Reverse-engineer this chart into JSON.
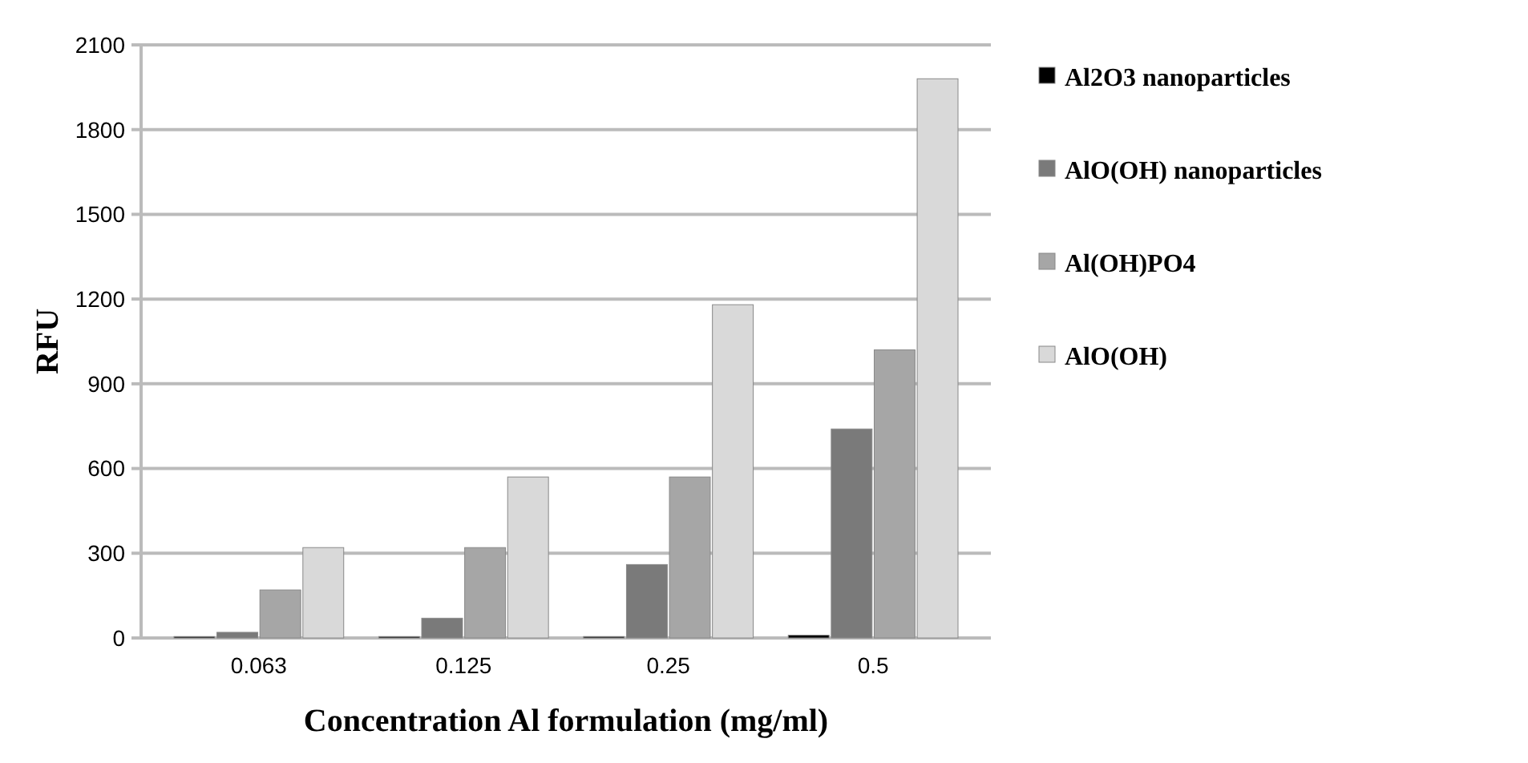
{
  "chart_data": {
    "type": "bar",
    "xlabel": "Concentration Al formulation (mg/ml)",
    "ylabel": "RFU",
    "categories": [
      "0.063",
      "0.125",
      "0.25",
      "0.5"
    ],
    "series": [
      {
        "name": "Al2O3 nanoparticles",
        "color": "#000000",
        "values": [
          5,
          5,
          5,
          10
        ]
      },
      {
        "name": "AlO(OH) nanoparticles",
        "color": "#7a7a7a",
        "values": [
          20,
          70,
          260,
          740
        ]
      },
      {
        "name": "Al(OH)PO4",
        "color": "#a6a6a6",
        "values": [
          170,
          320,
          570,
          1020
        ]
      },
      {
        "name": "AlO(OH)",
        "color": "#d9d9d9",
        "values": [
          320,
          570,
          1180,
          1980
        ]
      }
    ],
    "ylim": [
      0,
      2100
    ],
    "yticks": [
      0,
      300,
      600,
      900,
      1200,
      1500,
      1800,
      2100
    ],
    "grid": "y",
    "legend": "right"
  }
}
